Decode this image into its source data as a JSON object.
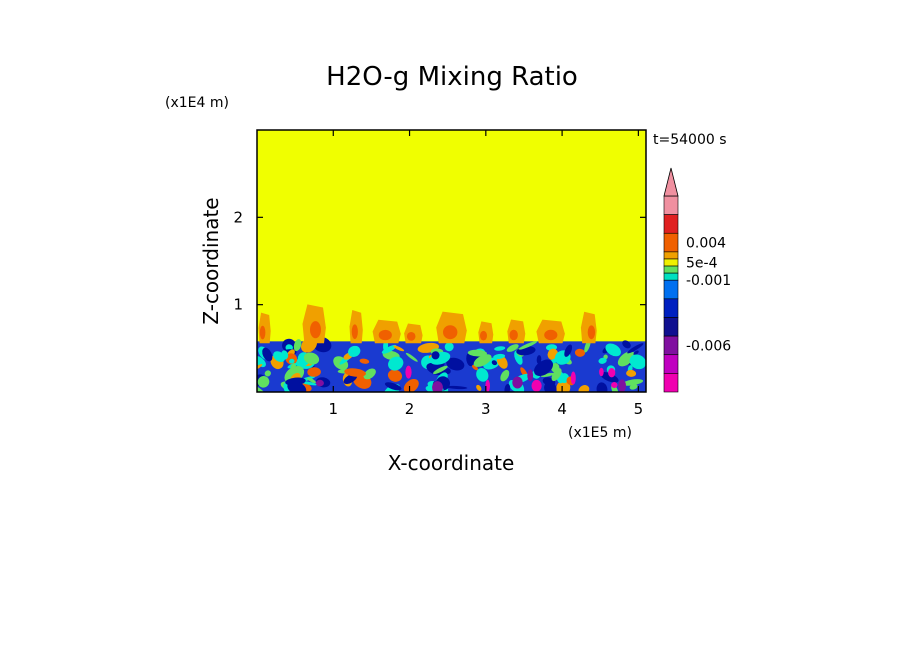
{
  "chart_data": {
    "type": "heatmap",
    "title": "H2O-g Mixing Ratio",
    "xlabel": "X-coordinate",
    "ylabel": "Z-coordinate",
    "x_scale_label": "(x1E5 m)",
    "y_scale_label": "(x1E4 m)",
    "time_label": "t=54000 s",
    "x_ticks": [
      "1",
      "2",
      "3",
      "4",
      "5"
    ],
    "x_tick_values": [
      1,
      2,
      3,
      4,
      5
    ],
    "y_ticks": [
      "1",
      "2"
    ],
    "y_tick_values": [
      1,
      2
    ],
    "xlim": [
      0,
      5.1
    ],
    "ylim": [
      0,
      3
    ],
    "boundary_layer_top": 0.58,
    "plume_max_height": 1.05,
    "plume_x_positions": [
      0.1,
      0.75,
      1.3,
      1.7,
      2.05,
      2.55,
      3.0,
      3.4,
      3.85,
      4.35
    ],
    "legend": {
      "colors": [
        "#f090a0",
        "#e02020",
        "#f06000",
        "#f0a000",
        "#f0f000",
        "#60e060",
        "#00e0c0",
        "#0070f0",
        "#0020c0",
        "#101090",
        "#8010a0",
        "#c000c0",
        "#f000b0"
      ],
      "labels": [
        "0.004",
        "5e-4",
        "-0.001",
        "-0.006"
      ]
    },
    "colors": {
      "background_field": "#f0ff00",
      "boundary_layer": "#1a3ad0",
      "deep_blue": "#0010a0",
      "cyan": "#00e8d0",
      "green": "#60e060",
      "orange": "#f0a000",
      "red_orange": "#f06000",
      "red": "#e02020",
      "magenta": "#f000b0",
      "purple": "#8010a0"
    }
  }
}
